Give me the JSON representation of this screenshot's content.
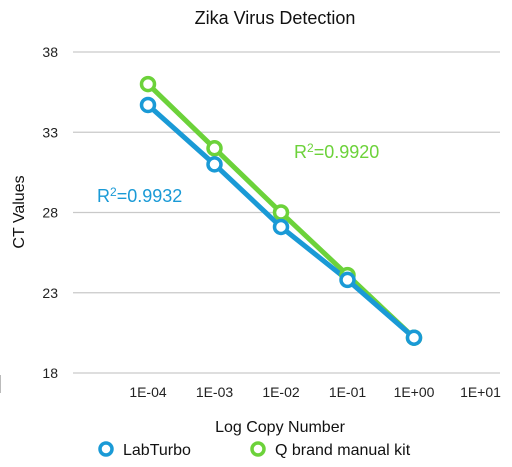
{
  "chart_data": {
    "type": "line",
    "title": "Zika Virus Detection",
    "xlabel": "Log Copy Number",
    "ylabel": "CT Values",
    "x_tick_labels": [
      "1E-04",
      "1E-03",
      "1E-02",
      "1E-01",
      "1E+00",
      "1E+01"
    ],
    "y_ticks": [
      18,
      23,
      28,
      33,
      38
    ],
    "ylim": [
      18,
      38
    ],
    "grid": "horizontal",
    "legend_position": "bottom",
    "series": [
      {
        "name": "LabTurbo",
        "color": "#1a9ad6",
        "x": [
          "1E-04",
          "1E-03",
          "1E-02",
          "1E-01",
          "1E+00"
        ],
        "values": [
          34.7,
          31.0,
          27.1,
          23.8,
          20.2
        ],
        "annotation": "R2=0.9932"
      },
      {
        "name": "Q brand manual kit",
        "color": "#6cd23a",
        "x": [
          "1E-04",
          "1E-03",
          "1E-02",
          "1E-01",
          "1E+00"
        ],
        "values": [
          36.0,
          32.0,
          28.0,
          24.1,
          20.2
        ],
        "annotation": "R2=0.9920"
      }
    ]
  }
}
